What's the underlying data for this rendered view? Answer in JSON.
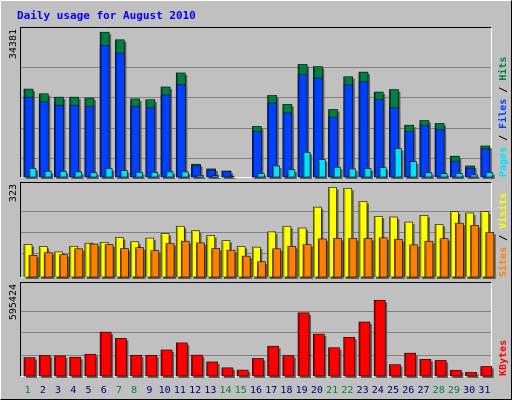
{
  "chart_data": [
    {
      "panel": "hits-files-pages",
      "type": "bar",
      "title": "Daily usage for August 2010",
      "categories": [
        "1",
        "2",
        "3",
        "4",
        "5",
        "6",
        "7",
        "8",
        "9",
        "10",
        "11",
        "12",
        "13",
        "14",
        "15",
        "16",
        "17",
        "18",
        "19",
        "20",
        "21",
        "22",
        "23",
        "24",
        "25",
        "26",
        "27",
        "28",
        "29",
        "30",
        "31"
      ],
      "weekend_days": [
        "1",
        "7",
        "8",
        "14",
        "15",
        "21",
        "22",
        "28",
        "29"
      ],
      "ymax_label": "34381",
      "ylim": [
        0,
        34381
      ],
      "legend": [
        "Pages",
        "/",
        "Files",
        "/",
        "Hits"
      ],
      "series": [
        {
          "name": "Hits",
          "color": "#008040",
          "values": [
            20700,
            19600,
            18800,
            18800,
            18600,
            34100,
            32300,
            18400,
            18200,
            21200,
            24500,
            3000,
            1900,
            1400,
            0,
            11900,
            19200,
            17100,
            26500,
            26000,
            15900,
            23600,
            24700,
            20000,
            20600,
            12200,
            13300,
            12600,
            4900,
            2600,
            7300
          ]
        },
        {
          "name": "Files",
          "color": "#0040ff",
          "values": [
            18800,
            17700,
            16900,
            16900,
            16600,
            31000,
            29200,
            16600,
            16300,
            19300,
            21800,
            2600,
            1600,
            1300,
            0,
            10700,
            17400,
            15100,
            24100,
            23300,
            14100,
            21700,
            22400,
            18200,
            16300,
            10700,
            12100,
            11200,
            3600,
            2100,
            6600
          ]
        },
        {
          "name": "Pages",
          "color": "#00e0ff",
          "values": [
            2000,
            1300,
            1300,
            1200,
            1000,
            2000,
            1500,
            1100,
            1100,
            1200,
            1200,
            400,
            300,
            200,
            0,
            800,
            2600,
            1700,
            5800,
            4100,
            2300,
            1900,
            2000,
            2200,
            6700,
            3600,
            1000,
            800,
            800,
            500,
            1000
          ]
        }
      ]
    },
    {
      "panel": "sites-visits",
      "type": "bar",
      "ymax_label": "323",
      "ylim": [
        0,
        323
      ],
      "legend": [
        "Sites",
        "/",
        "Visits"
      ],
      "series": [
        {
          "name": "Visits",
          "color": "#ffff00",
          "values": [
            115,
            108,
            89,
            109,
            120,
            123,
            140,
            125,
            138,
            154,
            180,
            164,
            147,
            129,
            108,
            106,
            160,
            180,
            174,
            248,
            318,
            315,
            268,
            215,
            213,
            195,
            219,
            186,
            232,
            227,
            232
          ]
        },
        {
          "name": "Sites",
          "color": "#ff8000",
          "values": [
            77,
            86,
            79,
            100,
            117,
            115,
            101,
            104,
            94,
            119,
            127,
            121,
            101,
            95,
            74,
            54,
            100,
            109,
            115,
            135,
            137,
            137,
            137,
            139,
            134,
            114,
            127,
            136,
            191,
            183,
            158
          ]
        }
      ]
    },
    {
      "panel": "kbytes",
      "type": "bar",
      "ymax_label": "595424",
      "ylim": [
        0,
        595424
      ],
      "legend": [
        "KBytes"
      ],
      "series": [
        {
          "name": "KBytes",
          "color": "#ff0000",
          "values": [
            122000,
            136000,
            133000,
            124000,
            144000,
            290000,
            249000,
            137000,
            137000,
            172000,
            219000,
            138000,
            93000,
            54000,
            39000,
            116000,
            197000,
            135000,
            418000,
            277000,
            187000,
            256000,
            357000,
            501000,
            75000,
            151000,
            110000,
            103000,
            38000,
            24000,
            63000
          ]
        }
      ]
    }
  ]
}
